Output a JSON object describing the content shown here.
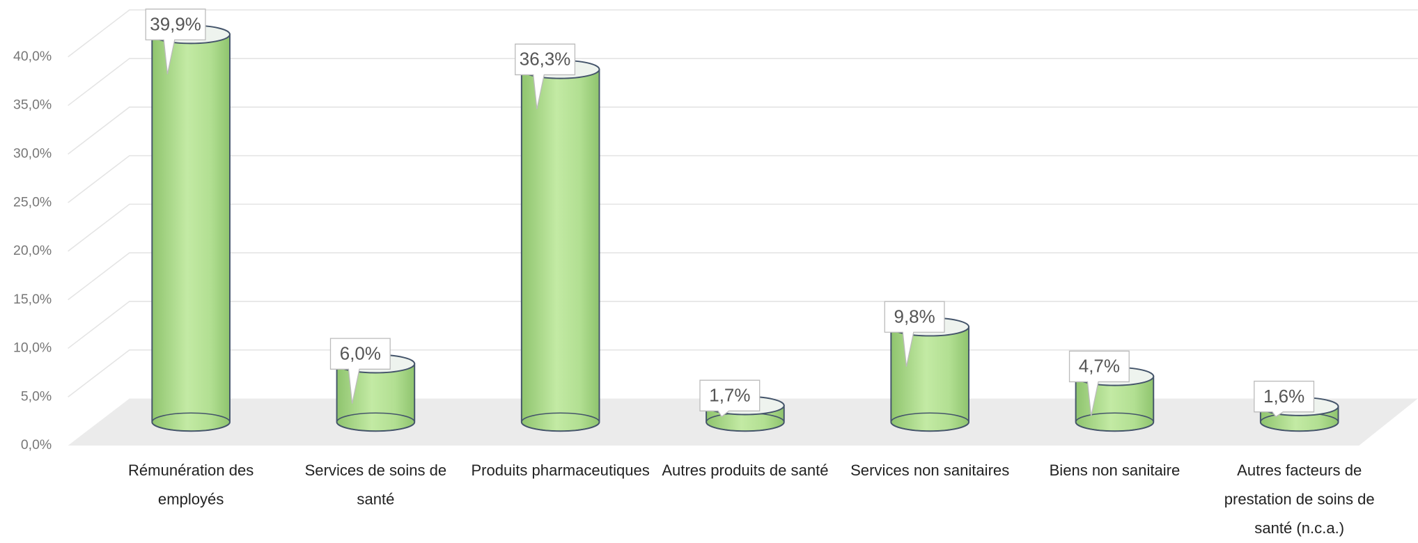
{
  "chart_data": {
    "type": "bar",
    "categories": [
      "Rémunération des employés",
      "Services de soins de santé",
      "Produits pharmaceutiques",
      "Autres produits de santé",
      "Services non sanitaires",
      "Biens non sanitaire",
      "Autres facteurs de prestation de soins de santé (n.c.a.)"
    ],
    "values": [
      39.9,
      6.0,
      36.3,
      1.7,
      9.8,
      4.7,
      1.6
    ],
    "value_labels": [
      "39,9%",
      "6,0%",
      "36,3%",
      "1,7%",
      "9,8%",
      "4,7%",
      "1,6%"
    ],
    "color": "#b5e396",
    "ylim": [
      0,
      40
    ],
    "yticks": [
      {
        "value": 0,
        "label": "0,0%"
      },
      {
        "value": 5,
        "label": "5,0%"
      },
      {
        "value": 10,
        "label": "10,0%"
      },
      {
        "value": 15,
        "label": "15,0%"
      },
      {
        "value": 20,
        "label": "20,0%"
      },
      {
        "value": 25,
        "label": "25,0%"
      },
      {
        "value": 30,
        "label": "30,0%"
      },
      {
        "value": 35,
        "label": "35,0%"
      },
      {
        "value": 40,
        "label": "40,0%"
      }
    ],
    "grid": true
  }
}
